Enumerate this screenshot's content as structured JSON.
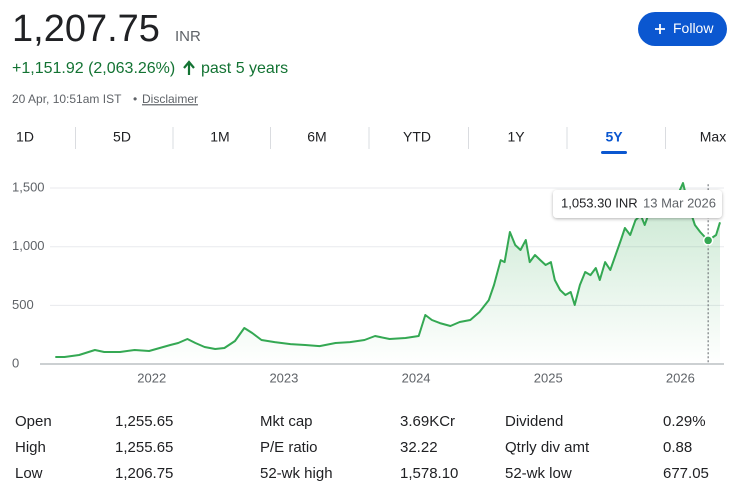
{
  "header": {
    "price": "1,207.75",
    "currency": "INR",
    "change": "+1,151.92 (2,063.26%)",
    "period": "past 5 years",
    "timestamp": "20 Apr, 10:51am IST",
    "separator": "•",
    "disclaimer": "Disclaimer"
  },
  "follow_button": "Follow",
  "tabs": {
    "items": [
      "1D",
      "5D",
      "1M",
      "6M",
      "YTD",
      "1Y",
      "5Y",
      "Max"
    ],
    "selected": 6
  },
  "chart_data": {
    "type": "line",
    "color": "#34a853",
    "x": [
      2021.27,
      2021.34,
      2021.45,
      2021.57,
      2021.64,
      2021.76,
      2021.87,
      2021.98,
      2022.06,
      2022.14,
      2022.2,
      2022.27,
      2022.33,
      2022.4,
      2022.48,
      2022.55,
      2022.63,
      2022.7,
      2022.76,
      2022.83,
      2022.93,
      2023.05,
      2023.16,
      2023.27,
      2023.39,
      2023.5,
      2023.61,
      2023.69,
      2023.8,
      2023.92,
      2024.02,
      2024.07,
      2024.12,
      2024.18,
      2024.26,
      2024.33,
      2024.41,
      2024.48,
      2024.55,
      2024.59,
      2024.64,
      2024.67,
      2024.71,
      2024.75,
      2024.79,
      2024.83,
      2024.86,
      2024.9,
      2024.94,
      2024.98,
      2025.02,
      2025.05,
      2025.09,
      2025.13,
      2025.17,
      2025.2,
      2025.24,
      2025.28,
      2025.32,
      2025.36,
      2025.39,
      2025.43,
      2025.47,
      2025.51,
      2025.55,
      2025.58,
      2025.62,
      2025.66,
      2025.7,
      2025.73,
      2025.77,
      2025.85,
      2025.92,
      2025.98,
      2026.02,
      2026.06,
      2026.11,
      2026.15,
      2026.21,
      2026.27,
      2026.3
    ],
    "values": [
      60,
      60,
      77,
      119,
      102,
      102,
      119,
      111,
      136,
      162,
      179,
      213,
      179,
      145,
      128,
      136,
      196,
      307,
      264,
      205,
      187,
      170,
      162,
      153,
      179,
      187,
      205,
      239,
      213,
      222,
      239,
      418,
      375,
      349,
      324,
      358,
      375,
      443,
      545,
      673,
      886,
      869,
      1125,
      1014,
      972,
      1057,
      869,
      929,
      886,
      844,
      869,
      716,
      631,
      588,
      614,
      503,
      673,
      784,
      758,
      818,
      716,
      869,
      801,
      929,
      1057,
      1159,
      1100,
      1227,
      1270,
      1185,
      1313,
      1296,
      1355,
      1440,
      1543,
      1355,
      1185,
      1125,
      1053,
      1100,
      1208
    ],
    "xlim": [
      2021.23,
      2026.33
    ],
    "xticks": [
      2022,
      2023,
      2024,
      2025,
      2026
    ],
    "ylim": [
      0,
      1600
    ],
    "yticks": [
      0,
      {
        "value": 500,
        "label": "500"
      },
      {
        "value": 1000,
        "label": "1,000"
      },
      {
        "value": 1500,
        "label": "1,500"
      }
    ],
    "grid": true,
    "tooltip": {
      "x": 2026.21,
      "value": 1053.3,
      "value_label": "1,053.30 INR",
      "date": "13 Mar 2026"
    }
  },
  "stats": [
    [
      [
        "Open",
        "1,255.65"
      ],
      [
        "Mkt cap",
        "3.69KCr"
      ],
      [
        "Dividend",
        "0.29%"
      ]
    ],
    [
      [
        "High",
        "1,255.65"
      ],
      [
        "P/E ratio",
        "32.22"
      ],
      [
        "Qtrly div amt",
        "0.88"
      ]
    ],
    [
      [
        "Low",
        "1,206.75"
      ],
      [
        "52-wk high",
        "1,578.10"
      ],
      [
        "52-wk low",
        "677.05"
      ]
    ]
  ]
}
